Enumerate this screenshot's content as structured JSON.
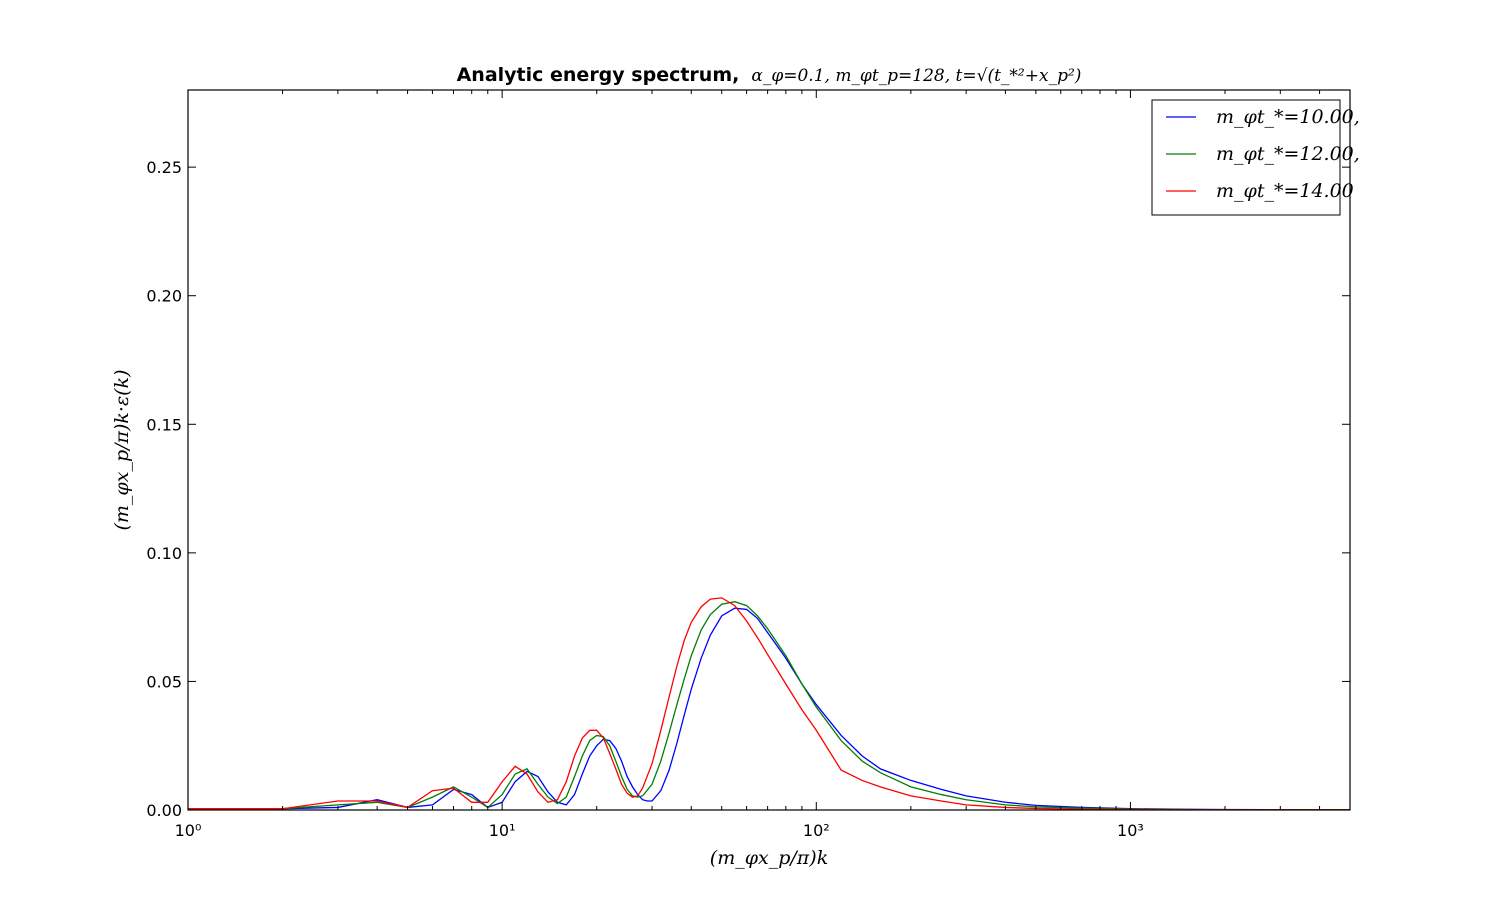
{
  "chart_data": {
    "type": "line",
    "title": "Analytic energy spectrum, α_φ=0.1, m_φt_p=128, t=√(t_*²+x_p²)",
    "title_bold": "Analytic energy spectrum,",
    "title_math": "α_φ=0.1, m_φt_p=128, t=√(t_*²+x_p²)",
    "xlabel": "(m_φx_p/π)k",
    "ylabel": "(m_φx_p/π)k·ε(k)",
    "xscale": "log",
    "xlim": [
      1,
      5000
    ],
    "ylim": [
      0,
      0.28
    ],
    "x_ticks": [
      {
        "value": 1,
        "label": "10⁰"
      },
      {
        "value": 10,
        "label": "10¹"
      },
      {
        "value": 100,
        "label": "10²"
      },
      {
        "value": 1000,
        "label": "10³"
      }
    ],
    "y_ticks": [
      {
        "value": 0.0,
        "label": "0.00"
      },
      {
        "value": 0.05,
        "label": "0.05"
      },
      {
        "value": 0.1,
        "label": "0.10"
      },
      {
        "value": 0.15,
        "label": "0.15"
      },
      {
        "value": 0.2,
        "label": "0.20"
      },
      {
        "value": 0.25,
        "label": "0.25"
      }
    ],
    "grid": false,
    "legend_position": "top-right",
    "series": [
      {
        "name": "m_φt_*=10.00,",
        "color": "#0000ff",
        "x": [
          1,
          2,
          3,
          4,
          5,
          6,
          7,
          8,
          9,
          10,
          11,
          12,
          13,
          14,
          15,
          16,
          17,
          18,
          19,
          20,
          21,
          22,
          23,
          24,
          25,
          26,
          27,
          28,
          29,
          30,
          32,
          34,
          36,
          38,
          40,
          43,
          46,
          50,
          55,
          60,
          65,
          70,
          80,
          90,
          100,
          120,
          140,
          160,
          200,
          250,
          300,
          400,
          500,
          700,
          1000,
          1500,
          2000,
          3000,
          5000
        ],
        "y": [
          0.0005,
          0.0005,
          0.001,
          0.004,
          0.001,
          0.002,
          0.008,
          0.006,
          0.001,
          0.003,
          0.011,
          0.015,
          0.013,
          0.007,
          0.003,
          0.002,
          0.006,
          0.014,
          0.021,
          0.025,
          0.0275,
          0.027,
          0.024,
          0.019,
          0.013,
          0.009,
          0.006,
          0.004,
          0.0035,
          0.0035,
          0.0075,
          0.0155,
          0.026,
          0.037,
          0.047,
          0.059,
          0.068,
          0.0755,
          0.0785,
          0.078,
          0.0745,
          0.069,
          0.059,
          0.049,
          0.041,
          0.029,
          0.021,
          0.016,
          0.0115,
          0.008,
          0.0055,
          0.003,
          0.0018,
          0.001,
          0.0005,
          0.0003,
          0.0002,
          0.0001,
          0.0001
        ]
      },
      {
        "name": "m_φt_*=12.00,",
        "color": "#008000",
        "x": [
          1,
          2,
          3,
          4,
          5,
          6,
          7,
          8,
          9,
          10,
          11,
          12,
          13,
          14,
          15,
          16,
          17,
          18,
          19,
          20,
          21,
          22,
          23,
          24,
          25,
          26,
          27,
          28,
          30,
          32,
          34,
          36,
          38,
          40,
          43,
          46,
          50,
          55,
          60,
          65,
          70,
          80,
          90,
          100,
          120,
          140,
          160,
          200,
          250,
          300,
          400,
          500,
          700,
          1000,
          1500,
          2000,
          3000,
          5000
        ],
        "y": [
          0.0005,
          0.0005,
          0.002,
          0.003,
          0.001,
          0.005,
          0.009,
          0.005,
          0.001,
          0.006,
          0.014,
          0.016,
          0.01,
          0.005,
          0.0025,
          0.005,
          0.013,
          0.021,
          0.027,
          0.029,
          0.0285,
          0.025,
          0.019,
          0.013,
          0.008,
          0.0055,
          0.005,
          0.0055,
          0.01,
          0.019,
          0.03,
          0.041,
          0.051,
          0.06,
          0.07,
          0.076,
          0.08,
          0.081,
          0.0795,
          0.0755,
          0.0705,
          0.06,
          0.049,
          0.04,
          0.027,
          0.019,
          0.0145,
          0.009,
          0.006,
          0.004,
          0.002,
          0.0012,
          0.0007,
          0.0004,
          0.0002,
          0.0001,
          0.0001,
          0.0001
        ]
      },
      {
        "name": "m_φt_*=14.00",
        "color": "#ff0000",
        "x": [
          1,
          2,
          3,
          4,
          5,
          6,
          7,
          8,
          9,
          10,
          11,
          12,
          13,
          14,
          15,
          16,
          17,
          18,
          19,
          20,
          21,
          22,
          23,
          24,
          25,
          26,
          27,
          28,
          30,
          32,
          34,
          36,
          38,
          40,
          43,
          46,
          50,
          55,
          60,
          65,
          70,
          80,
          90,
          100,
          120,
          140,
          160,
          200,
          250,
          300,
          400,
          500,
          700,
          1000,
          1500,
          2000,
          3000,
          5000
        ],
        "y": [
          0.0005,
          0.0005,
          0.0035,
          0.0035,
          0.001,
          0.0075,
          0.0085,
          0.003,
          0.003,
          0.011,
          0.017,
          0.014,
          0.007,
          0.003,
          0.004,
          0.011,
          0.021,
          0.028,
          0.031,
          0.031,
          0.028,
          0.022,
          0.016,
          0.01,
          0.0065,
          0.005,
          0.0055,
          0.0085,
          0.018,
          0.031,
          0.044,
          0.056,
          0.066,
          0.073,
          0.079,
          0.082,
          0.0825,
          0.0795,
          0.0735,
          0.067,
          0.0605,
          0.049,
          0.039,
          0.031,
          0.0155,
          0.0115,
          0.009,
          0.0055,
          0.0035,
          0.002,
          0.001,
          0.0006,
          0.0003,
          0.0002,
          0.0001,
          0.0001,
          0.0001,
          0.0001
        ]
      }
    ]
  }
}
